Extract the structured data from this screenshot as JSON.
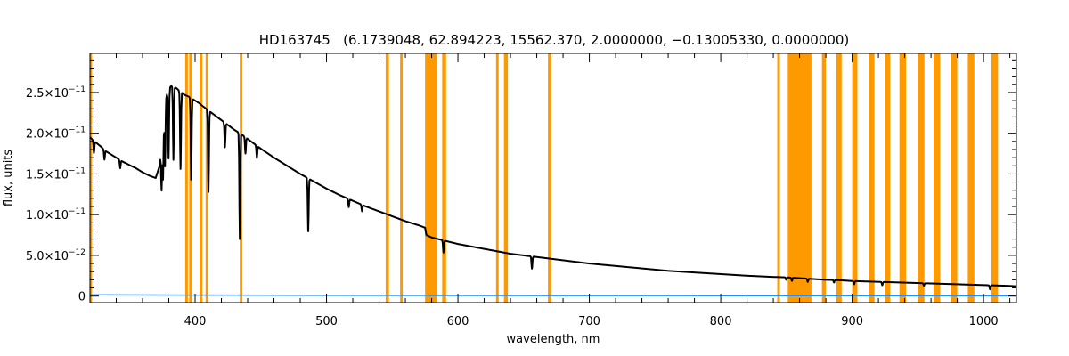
{
  "chart_data": {
    "type": "line",
    "title": "HD163745   (6.1739048, 62.894223, 15562.370, 2.0000000, −0.13005330, 0.0000000)",
    "xlabel": "wavelength, nm",
    "ylabel": "flux, units",
    "xlim": [
      320,
      1025
    ],
    "ylim": [
      -8e-13,
      2.98e-11
    ],
    "x_ticks": [
      400,
      500,
      600,
      700,
      800,
      900,
      1000
    ],
    "y_ticks": [
      {
        "value": 0,
        "label": "0"
      },
      {
        "value": 5e-12,
        "mantissa": "5.0×10",
        "exp": "−12"
      },
      {
        "value": 1e-11,
        "mantissa": "1.0×10",
        "exp": "−11"
      },
      {
        "value": 1.5e-11,
        "mantissa": "1.5×10",
        "exp": "−11"
      },
      {
        "value": 2e-11,
        "mantissa": "2.0×10",
        "exp": "−11"
      },
      {
        "value": 2.5e-11,
        "mantissa": "2.5×10",
        "exp": "−11"
      }
    ],
    "colors": {
      "spectrum": "#000000",
      "error": "#1e90ff",
      "mask": "#ff9900"
    },
    "masked_bands": [
      [
        320,
        321.5
      ],
      [
        392.5,
        394.5
      ],
      [
        395.5,
        397.5
      ],
      [
        403.5,
        405.5
      ],
      [
        408,
        410
      ],
      [
        434,
        436
      ],
      [
        545,
        547.5
      ],
      [
        556,
        558
      ],
      [
        575,
        584
      ],
      [
        588,
        591
      ],
      [
        629,
        631
      ],
      [
        635,
        638
      ],
      [
        668.5,
        671
      ],
      [
        843,
        845
      ],
      [
        851,
        869
      ],
      [
        877,
        880
      ],
      [
        888,
        892
      ],
      [
        900,
        904
      ],
      [
        913,
        917
      ],
      [
        925,
        929
      ],
      [
        936,
        941
      ],
      [
        950,
        955
      ],
      [
        962,
        967
      ],
      [
        975,
        980
      ],
      [
        988,
        993
      ],
      [
        1006,
        1011
      ]
    ],
    "series": [
      {
        "x": [
          320,
          322,
          325,
          328,
          332,
          336,
          340,
          345,
          350,
          355,
          360,
          365,
          370,
          373,
          376,
          378,
          380,
          382,
          384,
          386,
          388,
          390,
          392,
          395,
          398,
          400,
          403,
          406,
          410,
          415,
          420,
          425,
          430,
          435,
          440,
          450,
          460,
          470,
          480,
          490,
          500,
          510,
          520,
          530,
          540,
          550,
          560,
          570,
          575,
          576,
          580,
          590,
          600,
          610,
          620,
          630,
          640,
          650,
          660,
          670,
          680,
          690,
          700,
          720,
          740,
          760,
          780,
          800,
          820,
          840,
          850,
          860,
          870,
          880,
          890,
          900,
          910,
          920,
          930,
          940,
          950,
          960,
          970,
          980,
          990,
          1000,
          1010,
          1020,
          1025
        ],
        "y": [
          1.95e-11,
          1.92e-11,
          1.88e-11,
          1.84e-11,
          1.78e-11,
          1.74e-11,
          1.7e-11,
          1.65e-11,
          1.61e-11,
          1.57e-11,
          1.52e-11,
          1.48e-11,
          1.45e-11,
          1.6e-11,
          2.1e-11,
          2.45e-11,
          2.55e-11,
          2.58e-11,
          2.57e-11,
          2.55e-11,
          2.52e-11,
          2.5e-11,
          2.47e-11,
          2.45e-11,
          2.42e-11,
          2.4e-11,
          2.37e-11,
          2.33e-11,
          2.28e-11,
          2.22e-11,
          2.16e-11,
          2.1e-11,
          2.04e-11,
          1.99e-11,
          1.93e-11,
          1.81e-11,
          1.7e-11,
          1.6e-11,
          1.5e-11,
          1.41e-11,
          1.32e-11,
          1.24e-11,
          1.17e-11,
          1.1e-11,
          1.04e-11,
          9.8e-12,
          9.2e-12,
          8.7e-12,
          8.4e-12,
          7.5e-12,
          7.2e-12,
          6.8e-12,
          6.4e-12,
          6.1e-12,
          5.8e-12,
          5.5e-12,
          5.2e-12,
          5e-12,
          4.8e-12,
          4.6e-12,
          4.4e-12,
          4.2e-12,
          4e-12,
          3.7e-12,
          3.4e-12,
          3.1e-12,
          2.9e-12,
          2.7e-12,
          2.5e-12,
          2.35e-12,
          2.3e-12,
          2.2e-12,
          2.1e-12,
          2e-12,
          1.95e-12,
          1.85e-12,
          1.8e-12,
          1.75e-12,
          1.7e-12,
          1.65e-12,
          1.6e-12,
          1.55e-12,
          1.5e-12,
          1.45e-12,
          1.4e-12,
          1.35e-12,
          1.3e-12,
          1.25e-12,
          1.2e-12
        ]
      },
      {
        "x": [
          320,
          400,
          500,
          600,
          700,
          800,
          900,
          1000,
          1025
        ],
        "y": [
          1.5e-13,
          1.2e-13,
          9e-14,
          7e-14,
          6e-14,
          5e-14,
          4e-14,
          3.5e-14,
          3e-14
        ]
      }
    ],
    "absorption_lines": [
      {
        "x": 323,
        "depth": 1.5e-12
      },
      {
        "x": 331,
        "depth": 1.2e-12
      },
      {
        "x": 343,
        "depth": 1e-12
      },
      {
        "x": 374.5,
        "depth": 5.5e-12
      },
      {
        "x": 375.6,
        "depth": 6e-12
      },
      {
        "x": 377.1,
        "depth": 7e-12
      },
      {
        "x": 379.8,
        "depth": 8.5e-12
      },
      {
        "x": 383.5,
        "depth": 9e-12
      },
      {
        "x": 388.9,
        "depth": 9.5e-12
      },
      {
        "x": 397,
        "depth": 1e-11
      },
      {
        "x": 410.2,
        "depth": 1e-11
      },
      {
        "x": 422.7,
        "depth": 3e-12
      },
      {
        "x": 434,
        "depth": 1.3e-11
      },
      {
        "x": 438.3,
        "depth": 2e-12
      },
      {
        "x": 447,
        "depth": 1.5e-12
      },
      {
        "x": 486.1,
        "depth": 6.5e-12
      },
      {
        "x": 516.9,
        "depth": 1e-12
      },
      {
        "x": 527,
        "depth": 8e-13
      },
      {
        "x": 589,
        "depth": 1.5e-12
      },
      {
        "x": 656.3,
        "depth": 1.5e-12
      },
      {
        "x": 849.8,
        "depth": 3e-13
      },
      {
        "x": 854.2,
        "depth": 4e-13
      },
      {
        "x": 866.2,
        "depth": 4e-13
      },
      {
        "x": 886.2,
        "depth": 3e-13
      },
      {
        "x": 901.5,
        "depth": 4e-13
      },
      {
        "x": 922.9,
        "depth": 4e-13
      },
      {
        "x": 954.6,
        "depth": 3e-13
      },
      {
        "x": 1004.9,
        "depth": 5e-13
      }
    ]
  }
}
